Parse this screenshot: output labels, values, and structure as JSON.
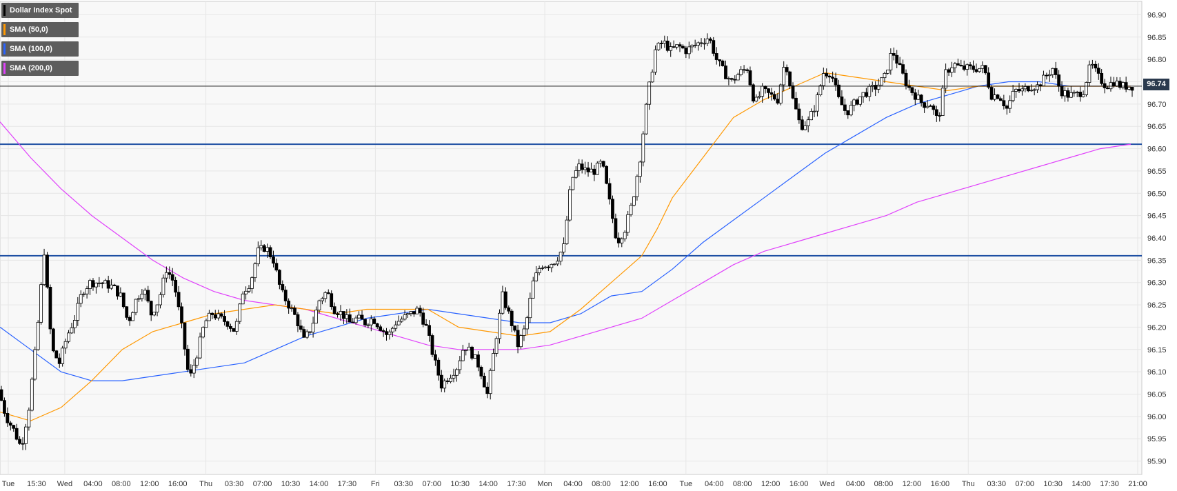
{
  "chart_data": {
    "type": "candlestick",
    "legend": [
      {
        "label": "Dollar Index Spot",
        "color": "#000000"
      },
      {
        "label": "SMA (50,0)",
        "color": "#ff9800"
      },
      {
        "label": "SMA (100,0)",
        "color": "#2962ff"
      },
      {
        "label": "SMA (200,0)",
        "color": "#e040fb"
      }
    ],
    "last_price": "96.74",
    "last_price_value": 96.74,
    "ylim": [
      95.87,
      96.93
    ],
    "y_ticks": [
      "96.90",
      "96.85",
      "96.80",
      "96.75",
      "96.70",
      "96.65",
      "96.60",
      "96.55",
      "96.50",
      "96.45",
      "96.40",
      "96.35",
      "96.30",
      "96.25",
      "96.20",
      "96.15",
      "96.10",
      "96.05",
      "96.00",
      "95.95",
      "95.90"
    ],
    "x_ticks": [
      "Tue",
      "15:30",
      "Wed",
      "04:00",
      "08:00",
      "12:00",
      "16:00",
      "Thu",
      "03:30",
      "07:00",
      "10:30",
      "14:00",
      "17:30",
      "Fri",
      "03:30",
      "07:00",
      "10:30",
      "14:00",
      "17:30",
      "Mon",
      "04:00",
      "08:00",
      "12:00",
      "16:00",
      "Tue",
      "04:00",
      "08:00",
      "12:00",
      "16:00",
      "Wed",
      "04:00",
      "08:00",
      "12:00",
      "16:00",
      "Thu",
      "03:30",
      "07:00",
      "10:30",
      "14:00",
      "17:30",
      "21:00"
    ],
    "horizontal_levels": [
      96.61,
      96.36
    ],
    "grid": true,
    "sma_50": [
      [
        0,
        96.01
      ],
      [
        40,
        95.99
      ],
      [
        80,
        96.02
      ],
      [
        120,
        96.08
      ],
      [
        160,
        96.15
      ],
      [
        200,
        96.19
      ],
      [
        240,
        96.21
      ],
      [
        280,
        96.23
      ],
      [
        320,
        96.24
      ],
      [
        360,
        96.25
      ],
      [
        400,
        96.24
      ],
      [
        440,
        96.23
      ],
      [
        480,
        96.24
      ],
      [
        520,
        96.24
      ],
      [
        560,
        96.24
      ],
      [
        600,
        96.2
      ],
      [
        640,
        96.19
      ],
      [
        680,
        96.18
      ],
      [
        720,
        96.19
      ],
      [
        760,
        96.24
      ],
      [
        800,
        96.3
      ],
      [
        840,
        96.36
      ],
      [
        860,
        96.42
      ],
      [
        880,
        96.49
      ],
      [
        920,
        96.58
      ],
      [
        960,
        96.67
      ],
      [
        1000,
        96.71
      ],
      [
        1040,
        96.74
      ],
      [
        1080,
        96.77
      ],
      [
        1120,
        96.76
      ],
      [
        1160,
        96.75
      ],
      [
        1200,
        96.74
      ],
      [
        1240,
        96.73
      ],
      [
        1280,
        96.74
      ],
      [
        1320,
        96.74
      ],
      [
        1360,
        96.74
      ],
      [
        1400,
        96.74
      ],
      [
        1440,
        96.74
      ],
      [
        1480,
        96.74
      ]
    ],
    "sma_100": [
      [
        0,
        96.2
      ],
      [
        40,
        96.15
      ],
      [
        80,
        96.1
      ],
      [
        120,
        96.08
      ],
      [
        160,
        96.08
      ],
      [
        200,
        96.09
      ],
      [
        240,
        96.1
      ],
      [
        280,
        96.11
      ],
      [
        320,
        96.12
      ],
      [
        360,
        96.15
      ],
      [
        400,
        96.18
      ],
      [
        440,
        96.2
      ],
      [
        480,
        96.22
      ],
      [
        520,
        96.23
      ],
      [
        560,
        96.24
      ],
      [
        600,
        96.23
      ],
      [
        640,
        96.22
      ],
      [
        680,
        96.21
      ],
      [
        720,
        96.21
      ],
      [
        760,
        96.23
      ],
      [
        800,
        96.27
      ],
      [
        840,
        96.28
      ],
      [
        880,
        96.33
      ],
      [
        920,
        96.39
      ],
      [
        960,
        96.44
      ],
      [
        1000,
        96.49
      ],
      [
        1040,
        96.54
      ],
      [
        1080,
        96.59
      ],
      [
        1120,
        96.63
      ],
      [
        1160,
        96.67
      ],
      [
        1200,
        96.7
      ],
      [
        1240,
        96.72
      ],
      [
        1280,
        96.74
      ],
      [
        1320,
        96.75
      ],
      [
        1360,
        96.75
      ],
      [
        1400,
        96.74
      ],
      [
        1440,
        96.74
      ],
      [
        1480,
        96.74
      ]
    ],
    "sma_200": [
      [
        0,
        96.66
      ],
      [
        40,
        96.58
      ],
      [
        80,
        96.51
      ],
      [
        120,
        96.45
      ],
      [
        160,
        96.4
      ],
      [
        200,
        96.35
      ],
      [
        240,
        96.31
      ],
      [
        280,
        96.28
      ],
      [
        320,
        96.26
      ],
      [
        360,
        96.25
      ],
      [
        400,
        96.24
      ],
      [
        440,
        96.22
      ],
      [
        480,
        96.2
      ],
      [
        520,
        96.18
      ],
      [
        560,
        96.16
      ],
      [
        600,
        96.15
      ],
      [
        640,
        96.15
      ],
      [
        680,
        96.15
      ],
      [
        720,
        96.16
      ],
      [
        760,
        96.18
      ],
      [
        800,
        96.2
      ],
      [
        840,
        96.22
      ],
      [
        880,
        96.26
      ],
      [
        920,
        96.3
      ],
      [
        960,
        96.34
      ],
      [
        1000,
        96.37
      ],
      [
        1040,
        96.39
      ],
      [
        1080,
        96.41
      ],
      [
        1120,
        96.43
      ],
      [
        1160,
        96.45
      ],
      [
        1200,
        96.48
      ],
      [
        1240,
        96.5
      ],
      [
        1280,
        96.52
      ],
      [
        1320,
        96.54
      ],
      [
        1360,
        96.56
      ],
      [
        1400,
        96.58
      ],
      [
        1440,
        96.6
      ],
      [
        1480,
        96.61
      ]
    ],
    "price_path": [
      [
        0,
        96.06
      ],
      [
        10,
        96.0
      ],
      [
        20,
        95.97
      ],
      [
        30,
        95.93
      ],
      [
        40,
        96.02
      ],
      [
        50,
        96.17
      ],
      [
        60,
        96.37
      ],
      [
        70,
        96.15
      ],
      [
        80,
        96.12
      ],
      [
        90,
        96.18
      ],
      [
        100,
        96.22
      ],
      [
        110,
        96.28
      ],
      [
        120,
        96.3
      ],
      [
        135,
        96.3
      ],
      [
        150,
        96.29
      ],
      [
        160,
        96.27
      ],
      [
        170,
        96.21
      ],
      [
        180,
        96.26
      ],
      [
        190,
        96.29
      ],
      [
        200,
        96.23
      ],
      [
        210,
        96.26
      ],
      [
        220,
        96.33
      ],
      [
        230,
        96.3
      ],
      [
        240,
        96.2
      ],
      [
        250,
        96.08
      ],
      [
        260,
        96.14
      ],
      [
        270,
        96.21
      ],
      [
        280,
        96.23
      ],
      [
        290,
        96.22
      ],
      [
        300,
        96.21
      ],
      [
        310,
        96.19
      ],
      [
        320,
        96.28
      ],
      [
        330,
        96.3
      ],
      [
        340,
        96.37
      ],
      [
        350,
        96.38
      ],
      [
        360,
        96.35
      ],
      [
        370,
        96.28
      ],
      [
        380,
        96.25
      ],
      [
        390,
        96.22
      ],
      [
        400,
        96.17
      ],
      [
        410,
        96.2
      ],
      [
        420,
        96.26
      ],
      [
        430,
        96.28
      ],
      [
        440,
        96.24
      ],
      [
        450,
        96.23
      ],
      [
        460,
        96.21
      ],
      [
        470,
        96.22
      ],
      [
        480,
        96.21
      ],
      [
        490,
        96.22
      ],
      [
        500,
        96.2
      ],
      [
        510,
        96.18
      ],
      [
        520,
        96.21
      ],
      [
        530,
        96.22
      ],
      [
        540,
        96.23
      ],
      [
        550,
        96.24
      ],
      [
        560,
        96.2
      ],
      [
        570,
        96.13
      ],
      [
        580,
        96.07
      ],
      [
        590,
        96.09
      ],
      [
        600,
        96.11
      ],
      [
        610,
        96.16
      ],
      [
        620,
        96.14
      ],
      [
        630,
        96.11
      ],
      [
        640,
        96.05
      ],
      [
        650,
        96.16
      ],
      [
        660,
        96.27
      ],
      [
        670,
        96.22
      ],
      [
        680,
        96.16
      ],
      [
        690,
        96.2
      ],
      [
        700,
        96.3
      ],
      [
        710,
        96.34
      ],
      [
        720,
        96.34
      ],
      [
        730,
        96.35
      ],
      [
        740,
        96.38
      ],
      [
        750,
        96.53
      ],
      [
        760,
        96.56
      ],
      [
        770,
        96.55
      ],
      [
        780,
        96.55
      ],
      [
        790,
        96.57
      ],
      [
        800,
        96.48
      ],
      [
        810,
        96.39
      ],
      [
        820,
        96.42
      ],
      [
        830,
        96.48
      ],
      [
        840,
        96.58
      ],
      [
        850,
        96.72
      ],
      [
        860,
        96.82
      ],
      [
        870,
        96.84
      ],
      [
        880,
        96.82
      ],
      [
        890,
        96.83
      ],
      [
        900,
        96.82
      ],
      [
        910,
        96.83
      ],
      [
        920,
        96.84
      ],
      [
        930,
        96.85
      ],
      [
        940,
        96.8
      ],
      [
        950,
        96.77
      ],
      [
        960,
        96.75
      ],
      [
        970,
        96.77
      ],
      [
        980,
        96.78
      ],
      [
        990,
        96.7
      ],
      [
        1000,
        96.73
      ],
      [
        1010,
        96.72
      ],
      [
        1020,
        96.71
      ],
      [
        1030,
        96.8
      ],
      [
        1040,
        96.71
      ],
      [
        1050,
        96.65
      ],
      [
        1060,
        96.66
      ],
      [
        1070,
        96.7
      ],
      [
        1080,
        96.77
      ],
      [
        1090,
        96.77
      ],
      [
        1100,
        96.71
      ],
      [
        1110,
        96.68
      ],
      [
        1120,
        96.7
      ],
      [
        1130,
        96.72
      ],
      [
        1140,
        96.73
      ],
      [
        1150,
        96.74
      ],
      [
        1160,
        96.76
      ],
      [
        1170,
        96.82
      ],
      [
        1180,
        96.78
      ],
      [
        1190,
        96.74
      ],
      [
        1200,
        96.72
      ],
      [
        1210,
        96.7
      ],
      [
        1220,
        96.7
      ],
      [
        1230,
        96.66
      ],
      [
        1240,
        96.77
      ],
      [
        1250,
        96.79
      ],
      [
        1260,
        96.78
      ],
      [
        1270,
        96.78
      ],
      [
        1280,
        96.78
      ],
      [
        1290,
        96.78
      ],
      [
        1300,
        96.72
      ],
      [
        1310,
        96.72
      ],
      [
        1320,
        96.69
      ],
      [
        1330,
        96.73
      ],
      [
        1340,
        96.73
      ],
      [
        1350,
        96.74
      ],
      [
        1360,
        96.74
      ],
      [
        1370,
        96.76
      ],
      [
        1380,
        96.78
      ],
      [
        1390,
        96.73
      ],
      [
        1400,
        96.72
      ],
      [
        1410,
        96.72
      ],
      [
        1420,
        96.73
      ],
      [
        1430,
        96.79
      ],
      [
        1440,
        96.76
      ],
      [
        1450,
        96.74
      ],
      [
        1460,
        96.75
      ],
      [
        1470,
        96.74
      ],
      [
        1480,
        96.74
      ]
    ]
  }
}
